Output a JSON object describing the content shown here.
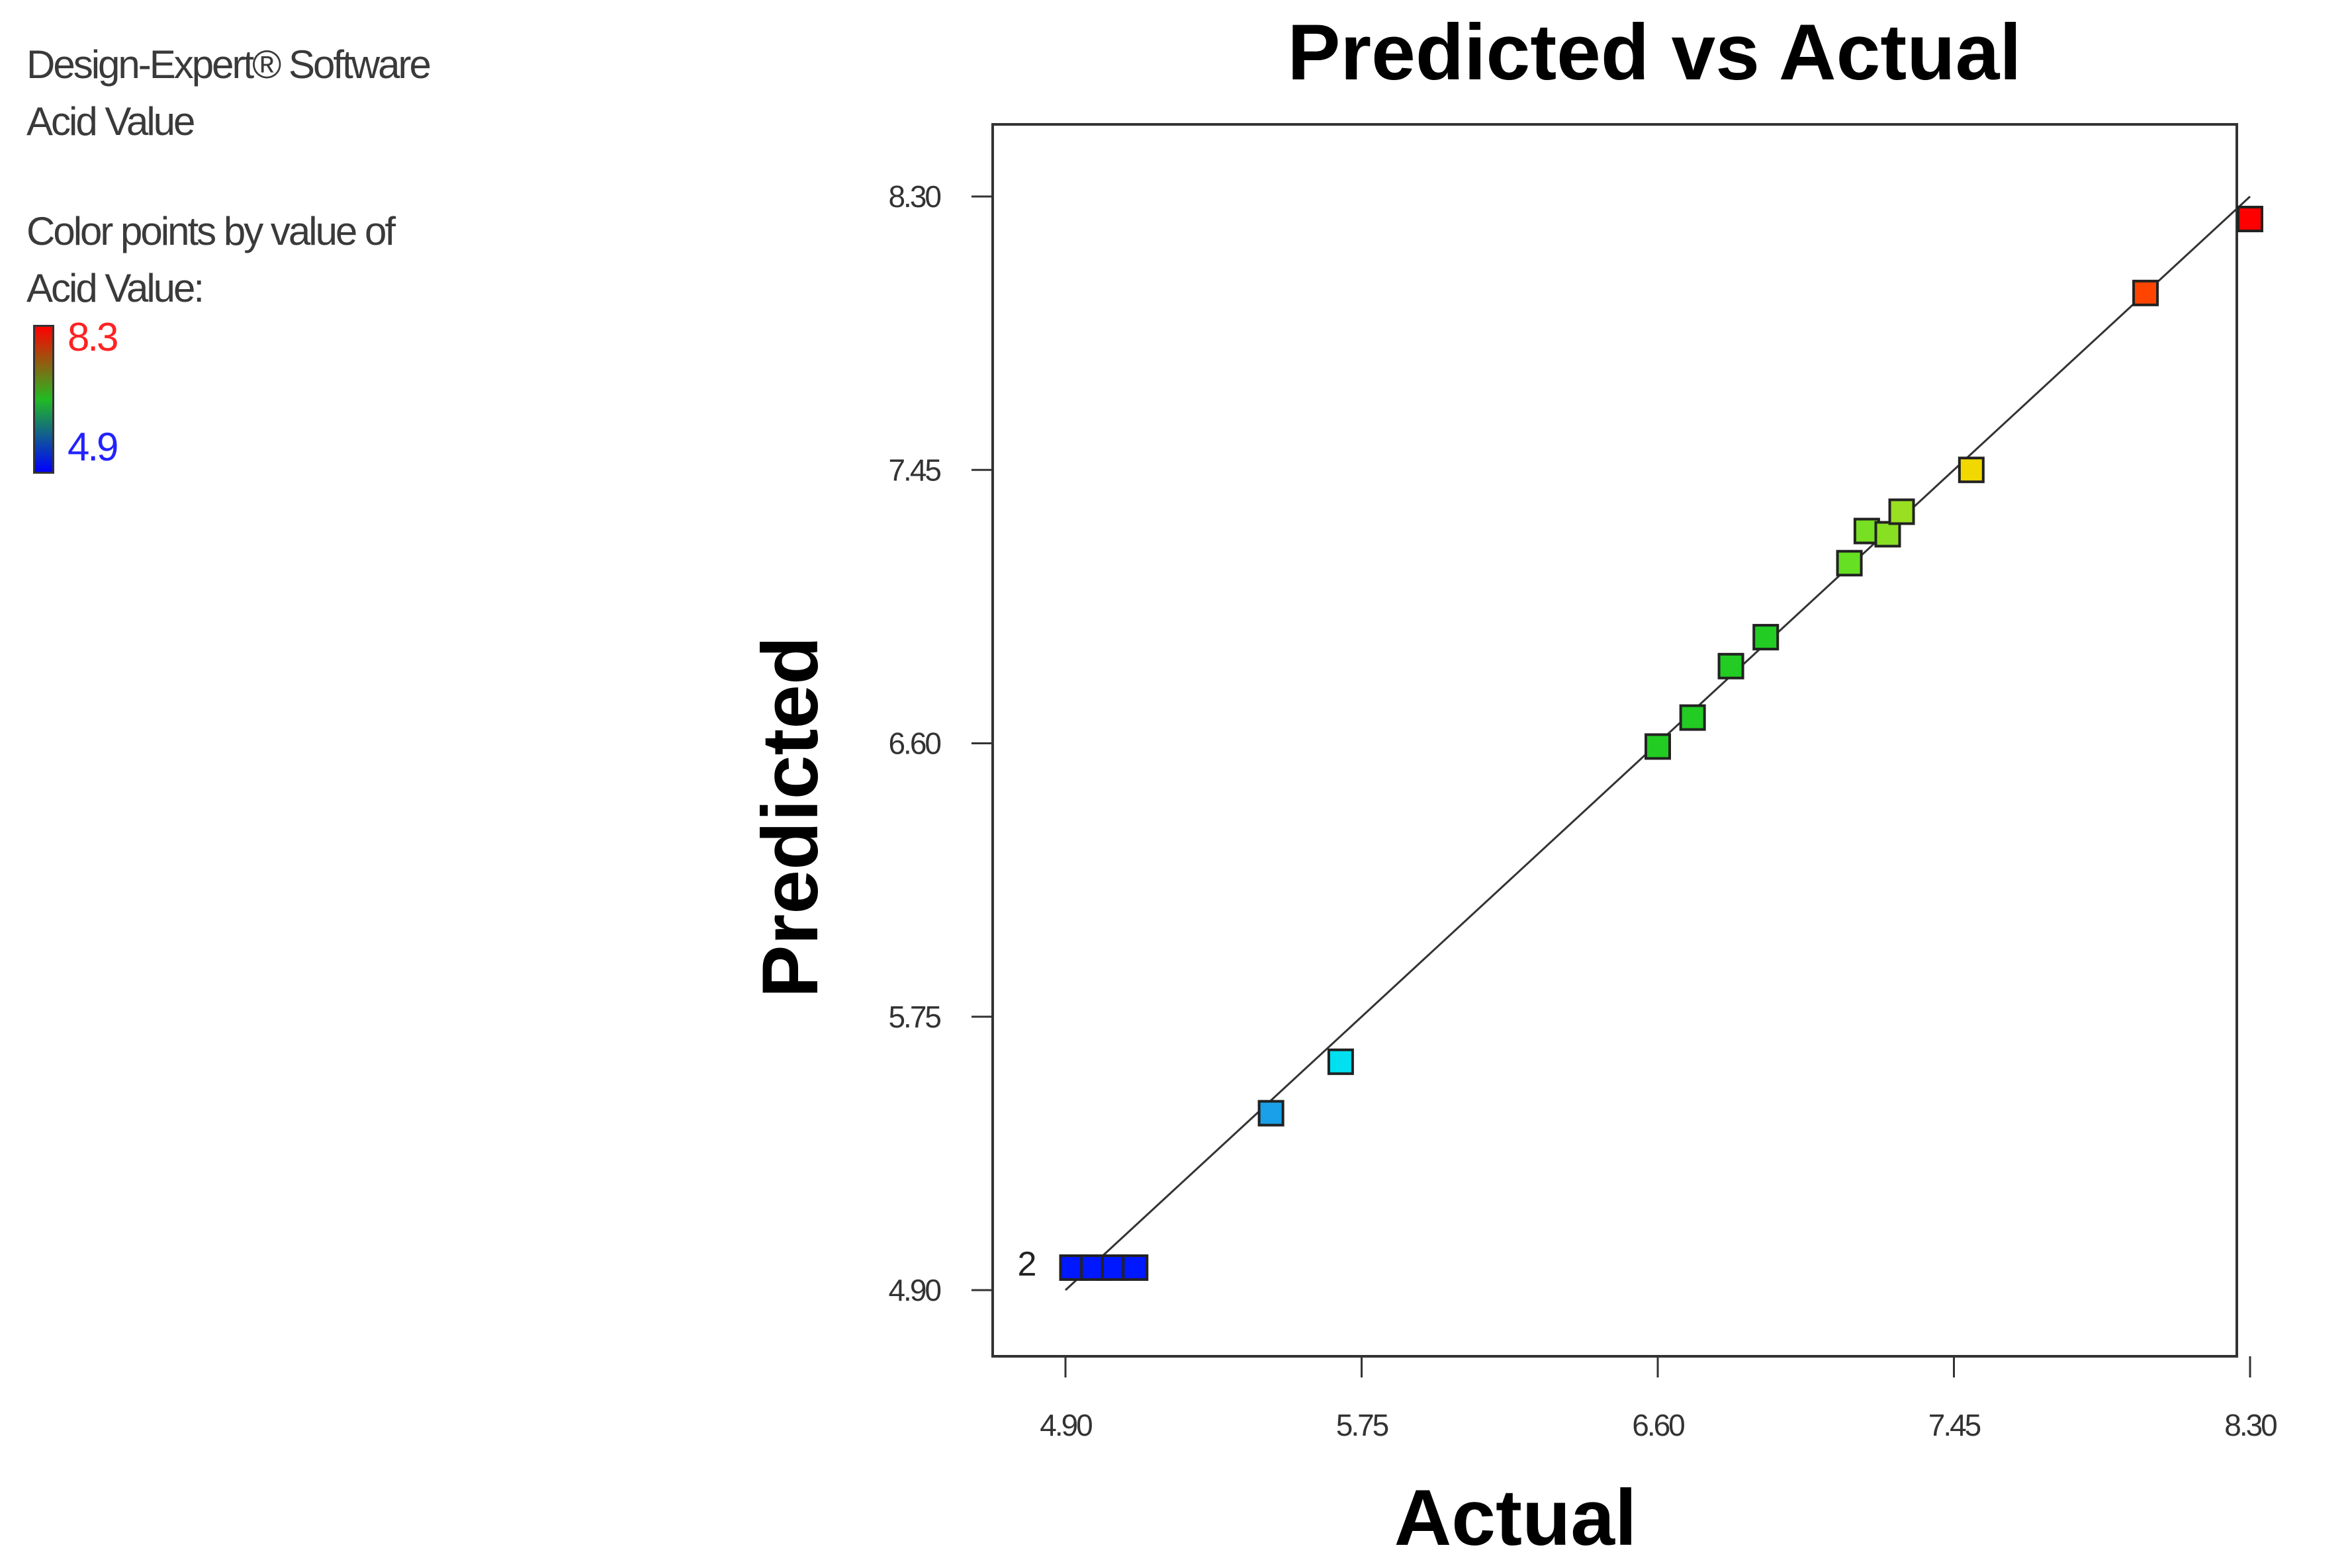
{
  "legend": {
    "software": "Design-Expert® Software",
    "response": "Acid Value",
    "color_caption_1": "Color points by value of",
    "color_caption_2": "Acid Value:",
    "color_high": "8.3",
    "color_low": "4.9"
  },
  "colors": {
    "low": "#0000ff",
    "mid": "#22bb22",
    "high": "#ff0000",
    "line": "#333333"
  },
  "chart_data": {
    "type": "scatter",
    "title": "Predicted vs Actual",
    "xlabel": "Actual",
    "ylabel": "Predicted",
    "xlim": [
      4.9,
      8.3
    ],
    "ylim": [
      4.9,
      8.3
    ],
    "xticks": [
      "4.90",
      "5.75",
      "6.60",
      "7.45",
      "8.30"
    ],
    "yticks": [
      "4.90",
      "5.75",
      "6.60",
      "7.45",
      "8.30"
    ],
    "grid": false,
    "reference_line": {
      "from": [
        4.9,
        4.9
      ],
      "to": [
        8.3,
        8.3
      ]
    },
    "points": [
      {
        "x": 4.92,
        "y": 4.97,
        "color": "#0018ff"
      },
      {
        "x": 4.98,
        "y": 4.97,
        "color": "#0018ff"
      },
      {
        "x": 5.04,
        "y": 4.97,
        "color": "#0018ff"
      },
      {
        "x": 5.1,
        "y": 4.97,
        "color": "#0018ff"
      },
      {
        "x": 5.49,
        "y": 5.45,
        "color": "#1aa0e8"
      },
      {
        "x": 5.69,
        "y": 5.61,
        "color": "#00e0f0"
      },
      {
        "x": 6.6,
        "y": 6.59,
        "color": "#22cc22"
      },
      {
        "x": 6.7,
        "y": 6.68,
        "color": "#22cc22"
      },
      {
        "x": 6.81,
        "y": 6.84,
        "color": "#22cc22"
      },
      {
        "x": 6.91,
        "y": 6.93,
        "color": "#22cc22"
      },
      {
        "x": 7.15,
        "y": 7.16,
        "color": "#66e022"
      },
      {
        "x": 7.2,
        "y": 7.26,
        "color": "#77e022"
      },
      {
        "x": 7.26,
        "y": 7.25,
        "color": "#88e022"
      },
      {
        "x": 7.3,
        "y": 7.32,
        "color": "#99e022"
      },
      {
        "x": 7.5,
        "y": 7.45,
        "color": "#f0d800"
      },
      {
        "x": 8.0,
        "y": 8.0,
        "color": "#ff4400"
      },
      {
        "x": 8.3,
        "y": 8.23,
        "color": "#ff0000"
      }
    ],
    "annotations": [
      {
        "text": "2",
        "x": 4.9,
        "y": 4.97
      }
    ]
  }
}
